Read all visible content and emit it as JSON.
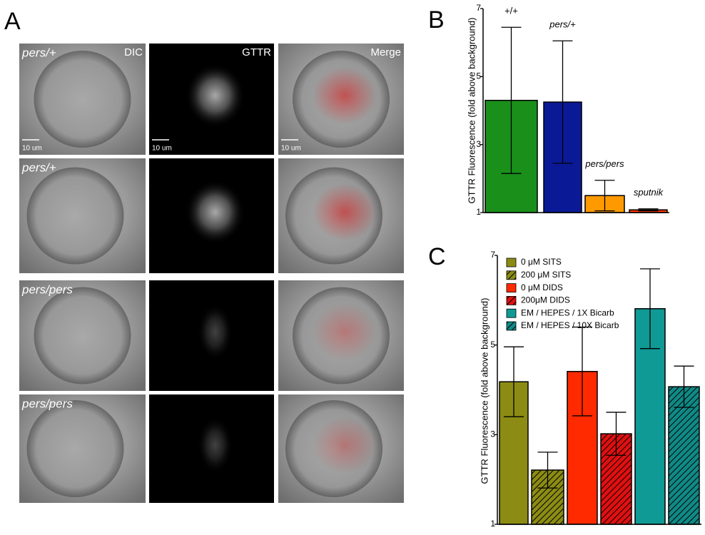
{
  "panel_a": {
    "label": "A",
    "columns": [
      "DIC",
      "GTTR",
      "Merge"
    ],
    "rows": [
      "pers/+",
      "pers/+",
      "pers/pers",
      "pers/pers"
    ],
    "scale_bar": "10 um"
  },
  "chart_data": [
    {
      "type": "bar",
      "panel_label": "B",
      "y_label": "GTTR Fluorescence (fold above background)",
      "categories": [
        "+/+",
        "pers/+",
        "pers/pers",
        "sputnik"
      ],
      "values": [
        4.3,
        4.25,
        1.5,
        1.08
      ],
      "errors": [
        2.15,
        1.8,
        0.45,
        0.03
      ],
      "colors": [
        "#1a8f1a",
        "#0a1a96",
        "#ff9900",
        "#ff3300"
      ],
      "ylim": [
        1,
        7
      ],
      "yticks": [
        1,
        3,
        5,
        7
      ]
    },
    {
      "type": "bar",
      "panel_label": "C",
      "y_label": "GTTR Fluorescence (fold above background)",
      "series": [
        {
          "name": "0 μM SITS",
          "color": "#8c8c14",
          "hatch": false,
          "values": [
            4.18
          ],
          "errors": [
            0.78
          ]
        },
        {
          "name": "200 μM SITS",
          "color": "#8c8c14",
          "hatch": true,
          "values": [
            2.21
          ],
          "errors": [
            0.4
          ]
        },
        {
          "name": "0 μM DIDS",
          "color": "#ff2a00",
          "hatch": false,
          "values": [
            4.41
          ],
          "errors": [
            0.99
          ]
        },
        {
          "name": "200μM DIDS",
          "color": "#e01010",
          "hatch": true,
          "values": [
            3.02
          ],
          "errors": [
            0.48
          ]
        },
        {
          "name": "EM / HEPES / 1X Bicarb",
          "color": "#0f9a96",
          "hatch": false,
          "values": [
            5.81
          ],
          "errors": [
            0.89
          ]
        },
        {
          "name": "EM / HEPES / 10X Bicarb",
          "color": "#0f8a86",
          "hatch": true,
          "values": [
            4.07
          ],
          "errors": [
            0.46
          ]
        }
      ],
      "ylim": [
        1,
        7
      ],
      "yticks": [
        1,
        3,
        5,
        7
      ],
      "legend": "top-left"
    }
  ]
}
